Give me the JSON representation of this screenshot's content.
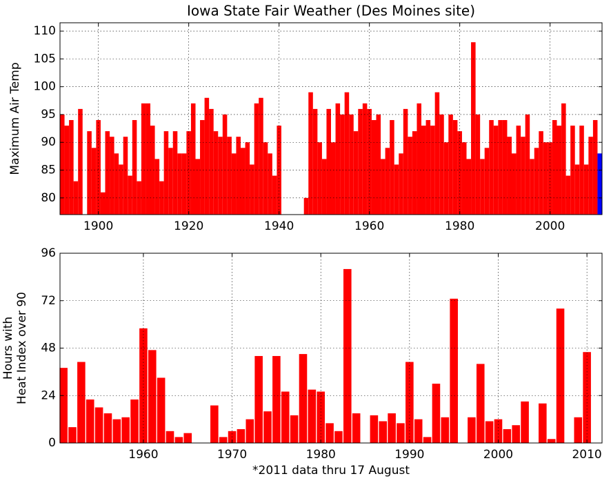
{
  "chart_data": [
    {
      "type": "bar",
      "title": "Iowa State Fair Weather (Des Moines site)",
      "ylabel": [
        "Maximum Air Temp"
      ],
      "x": [
        1892,
        1893,
        1894,
        1895,
        1896,
        1897,
        1898,
        1899,
        1900,
        1901,
        1902,
        1903,
        1904,
        1905,
        1906,
        1907,
        1908,
        1909,
        1910,
        1911,
        1912,
        1913,
        1914,
        1915,
        1916,
        1917,
        1918,
        1919,
        1920,
        1921,
        1922,
        1923,
        1924,
        1925,
        1926,
        1927,
        1928,
        1929,
        1930,
        1931,
        1932,
        1933,
        1934,
        1935,
        1936,
        1937,
        1938,
        1939,
        1940,
        1941,
        1942,
        1943,
        1944,
        1945,
        1946,
        1947,
        1948,
        1949,
        1950,
        1951,
        1952,
        1953,
        1954,
        1955,
        1956,
        1957,
        1958,
        1959,
        1960,
        1961,
        1962,
        1963,
        1964,
        1965,
        1966,
        1967,
        1968,
        1969,
        1970,
        1971,
        1972,
        1973,
        1974,
        1975,
        1976,
        1977,
        1978,
        1979,
        1980,
        1981,
        1982,
        1983,
        1984,
        1985,
        1986,
        1987,
        1988,
        1989,
        1990,
        1991,
        1992,
        1993,
        1994,
        1995,
        1996,
        1997,
        1998,
        1999,
        2000,
        2001,
        2002,
        2003,
        2004,
        2005,
        2006,
        2007,
        2008,
        2009,
        2010,
        2011
      ],
      "series": [
        {
          "color": "#ff0000",
          "values": [
            95,
            93,
            94,
            83,
            96,
            null,
            92,
            89,
            94,
            81,
            92,
            91,
            88,
            86,
            91,
            84,
            94,
            83,
            97,
            97,
            93,
            87,
            83,
            92,
            89,
            92,
            88,
            88,
            92,
            97,
            87,
            94,
            98,
            96,
            92,
            91,
            95,
            91,
            88,
            91,
            89,
            90,
            86,
            97,
            98,
            90,
            88,
            84,
            93,
            null,
            null,
            null,
            null,
            null,
            80,
            99,
            96,
            90,
            87,
            96,
            90,
            97,
            95,
            99,
            95,
            92,
            96,
            97,
            96,
            94,
            95,
            87,
            89,
            94,
            86,
            88,
            96,
            91,
            92,
            97,
            93,
            94,
            93,
            99,
            95,
            90,
            95,
            94,
            92,
            90,
            87,
            108,
            95,
            87,
            89,
            94,
            93,
            94,
            94,
            91,
            88,
            93,
            91,
            95,
            87,
            89,
            92,
            90,
            90,
            94,
            93,
            97,
            84,
            93,
            86,
            93,
            86,
            91,
            94,
            null
          ]
        },
        {
          "color": "#0000ff",
          "values": [
            null,
            null,
            null,
            null,
            null,
            null,
            null,
            null,
            null,
            null,
            null,
            null,
            null,
            null,
            null,
            null,
            null,
            null,
            null,
            null,
            null,
            null,
            null,
            null,
            null,
            null,
            null,
            null,
            null,
            null,
            null,
            null,
            null,
            null,
            null,
            null,
            null,
            null,
            null,
            null,
            null,
            null,
            null,
            null,
            null,
            null,
            null,
            null,
            null,
            null,
            null,
            null,
            null,
            null,
            null,
            null,
            null,
            null,
            null,
            null,
            null,
            null,
            null,
            null,
            null,
            null,
            null,
            null,
            null,
            null,
            null,
            null,
            null,
            null,
            null,
            null,
            null,
            null,
            null,
            null,
            null,
            null,
            null,
            null,
            null,
            null,
            null,
            null,
            null,
            null,
            null,
            null,
            null,
            null,
            null,
            null,
            null,
            null,
            null,
            null,
            null,
            null,
            null,
            null,
            null,
            null,
            null,
            null,
            null,
            null,
            null,
            null,
            null,
            null,
            null,
            null,
            null,
            null,
            null,
            88
          ]
        }
      ],
      "bar_width": 1,
      "xlim": [
        1891.5,
        2011.5
      ],
      "xticks": [
        1900,
        1920,
        1940,
        1960,
        1980,
        2000
      ],
      "ylim": [
        77,
        111.5
      ],
      "yticks": [
        80,
        85,
        90,
        95,
        100,
        105,
        110
      ],
      "grid": true
    },
    {
      "type": "bar",
      "ylabel": [
        "Hours with",
        "Heat Index over 90"
      ],
      "xlabel": "*2011 data thru 17 August",
      "x": [
        1951,
        1952,
        1953,
        1954,
        1955,
        1956,
        1957,
        1958,
        1959,
        1960,
        1961,
        1962,
        1963,
        1964,
        1965,
        1966,
        1967,
        1968,
        1969,
        1970,
        1971,
        1972,
        1973,
        1974,
        1975,
        1976,
        1977,
        1978,
        1979,
        1980,
        1981,
        1982,
        1983,
        1984,
        1985,
        1986,
        1987,
        1988,
        1989,
        1990,
        1991,
        1992,
        1993,
        1994,
        1995,
        1996,
        1997,
        1998,
        1999,
        2000,
        2001,
        2002,
        2003,
        2004,
        2005,
        2006,
        2007,
        2008,
        2009,
        2010
      ],
      "series": [
        {
          "color": "#ff0000",
          "values": [
            38,
            8,
            41,
            22,
            18,
            15,
            12,
            13,
            22,
            58,
            47,
            33,
            6,
            3,
            5,
            0,
            0,
            19,
            3,
            6,
            7,
            12,
            44,
            16,
            44,
            26,
            14,
            45,
            27,
            26,
            10,
            6,
            88,
            15,
            0,
            14,
            11,
            15,
            10,
            41,
            12,
            3,
            30,
            13,
            73,
            0,
            13,
            40,
            11,
            12,
            7,
            9,
            21,
            0,
            20,
            2,
            68,
            0,
            13,
            46
          ]
        }
      ],
      "bar_width": 0.9,
      "xlim": [
        1950.6,
        2011.7
      ],
      "xticks": [
        1960,
        1970,
        1980,
        1990,
        2000,
        2010
      ],
      "ylim": [
        0,
        96
      ],
      "yticks": [
        0,
        24,
        48,
        72,
        96
      ],
      "grid": true
    }
  ]
}
